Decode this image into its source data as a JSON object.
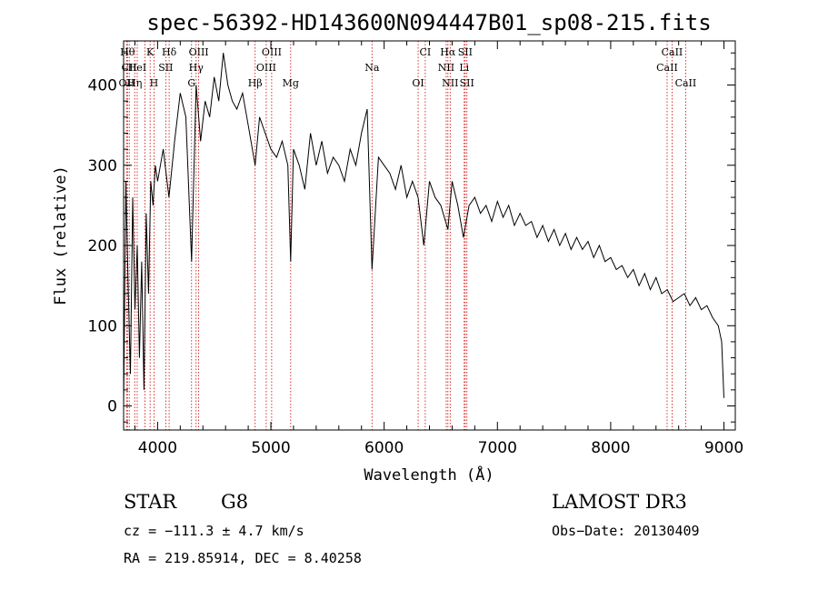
{
  "chart_data": {
    "type": "line",
    "title": "spec-56392-HD143600N094447B01_sp08-215.fits",
    "xlabel": "Wavelength (Å)",
    "ylabel": "Flux (relative)",
    "xlim": [
      3700,
      9100
    ],
    "ylim": [
      -30,
      455
    ],
    "xticks": [
      4000,
      5000,
      6000,
      7000,
      8000,
      9000
    ],
    "yticks": [
      0,
      100,
      200,
      300,
      400
    ],
    "grid": false,
    "series": [
      {
        "x": [
          3700,
          3720,
          3740,
          3760,
          3780,
          3800,
          3820,
          3840,
          3860,
          3880,
          3900,
          3920,
          3940,
          3960,
          3980,
          4000,
          4050,
          4100,
          4150,
          4200,
          4250,
          4300,
          4340,
          4380,
          4420,
          4460,
          4500,
          4540,
          4580,
          4620,
          4660,
          4700,
          4750,
          4800,
          4861,
          4900,
          4950,
          5000,
          5050,
          5100,
          5150,
          5175,
          5200,
          5250,
          5300,
          5350,
          5400,
          5450,
          5500,
          5550,
          5600,
          5650,
          5700,
          5750,
          5800,
          5850,
          5893,
          5950,
          6000,
          6050,
          6100,
          6150,
          6200,
          6250,
          6300,
          6350,
          6400,
          6450,
          6500,
          6563,
          6600,
          6650,
          6700,
          6750,
          6800,
          6850,
          6900,
          6950,
          7000,
          7050,
          7100,
          7150,
          7200,
          7250,
          7300,
          7350,
          7400,
          7450,
          7500,
          7550,
          7600,
          7650,
          7700,
          7750,
          7800,
          7850,
          7900,
          7950,
          8000,
          8050,
          8100,
          8150,
          8200,
          8250,
          8300,
          8350,
          8400,
          8450,
          8500,
          8550,
          8600,
          8650,
          8700,
          8750,
          8800,
          8850,
          8900,
          8950,
          8980,
          9000
        ],
        "y": [
          0,
          280,
          150,
          40,
          260,
          120,
          200,
          60,
          180,
          20,
          240,
          140,
          280,
          250,
          300,
          280,
          320,
          260,
          330,
          390,
          360,
          180,
          400,
          330,
          380,
          360,
          410,
          380,
          440,
          400,
          380,
          370,
          390,
          350,
          300,
          360,
          340,
          320,
          310,
          330,
          300,
          180,
          320,
          300,
          270,
          340,
          300,
          330,
          290,
          310,
          300,
          280,
          320,
          300,
          340,
          370,
          170,
          310,
          300,
          290,
          270,
          300,
          260,
          280,
          260,
          200,
          280,
          260,
          250,
          220,
          280,
          250,
          210,
          250,
          260,
          240,
          250,
          230,
          255,
          235,
          250,
          225,
          240,
          225,
          230,
          210,
          225,
          205,
          220,
          200,
          215,
          195,
          210,
          195,
          205,
          185,
          200,
          180,
          185,
          170,
          175,
          160,
          170,
          150,
          165,
          145,
          160,
          140,
          145,
          130,
          135,
          140,
          125,
          135,
          120,
          125,
          110,
          100,
          80,
          10
        ]
      }
    ],
    "lines": [
      {
        "x": 3727,
        "label": "OII",
        "row": 2
      },
      {
        "x": 3734,
        "label": "Hθ",
        "row": 0
      },
      {
        "x": 3750,
        "label": "CII",
        "row": 1
      },
      {
        "x": 3798,
        "label": "Hη",
        "row": 2
      },
      {
        "x": 3820,
        "label": "HeI",
        "row": 1
      },
      {
        "x": 3889,
        "label": "",
        "row": -1
      },
      {
        "x": 3934,
        "label": "K",
        "row": 0
      },
      {
        "x": 3968,
        "label": "H",
        "row": 2
      },
      {
        "x": 4072,
        "label": "SII",
        "row": 1
      },
      {
        "x": 4102,
        "label": "Hδ",
        "row": 0
      },
      {
        "x": 4300,
        "label": "G",
        "row": 2
      },
      {
        "x": 4340,
        "label": "Hγ",
        "row": 1
      },
      {
        "x": 4363,
        "label": "OIII",
        "row": 0
      },
      {
        "x": 4861,
        "label": "Hβ",
        "row": 2
      },
      {
        "x": 4959,
        "label": "OIII",
        "row": 1
      },
      {
        "x": 5007,
        "label": "OIII",
        "row": 0
      },
      {
        "x": 5175,
        "label": "Mg",
        "row": 2
      },
      {
        "x": 5893,
        "label": "Na",
        "row": 1
      },
      {
        "x": 6300,
        "label": "OI",
        "row": 2
      },
      {
        "x": 6363,
        "label": "CI",
        "row": 0
      },
      {
        "x": 6548,
        "label": "NII",
        "row": 1
      },
      {
        "x": 6563,
        "label": "Hα",
        "row": 0
      },
      {
        "x": 6583,
        "label": "NII",
        "row": 2
      },
      {
        "x": 6707,
        "label": "Li",
        "row": 1
      },
      {
        "x": 6716,
        "label": "SII",
        "row": 0
      },
      {
        "x": 6731,
        "label": "SII",
        "row": 2
      },
      {
        "x": 8498,
        "label": "CaII",
        "row": 1
      },
      {
        "x": 8542,
        "label": "CaII",
        "row": 0
      },
      {
        "x": 8662,
        "label": "CaII",
        "row": 2
      }
    ]
  },
  "info": {
    "class_label": "STAR",
    "subclass": "G8",
    "survey": "LAMOST DR3",
    "cz": "cz = −111.3 ± 4.7 km/s",
    "obs_date": "Obs−Date: 20130409",
    "coords": "RA = 219.85914, DEC =   8.40258"
  },
  "colors": {
    "spectrum": "#000000",
    "line_markers": "#cc0000",
    "axes": "#000000"
  }
}
